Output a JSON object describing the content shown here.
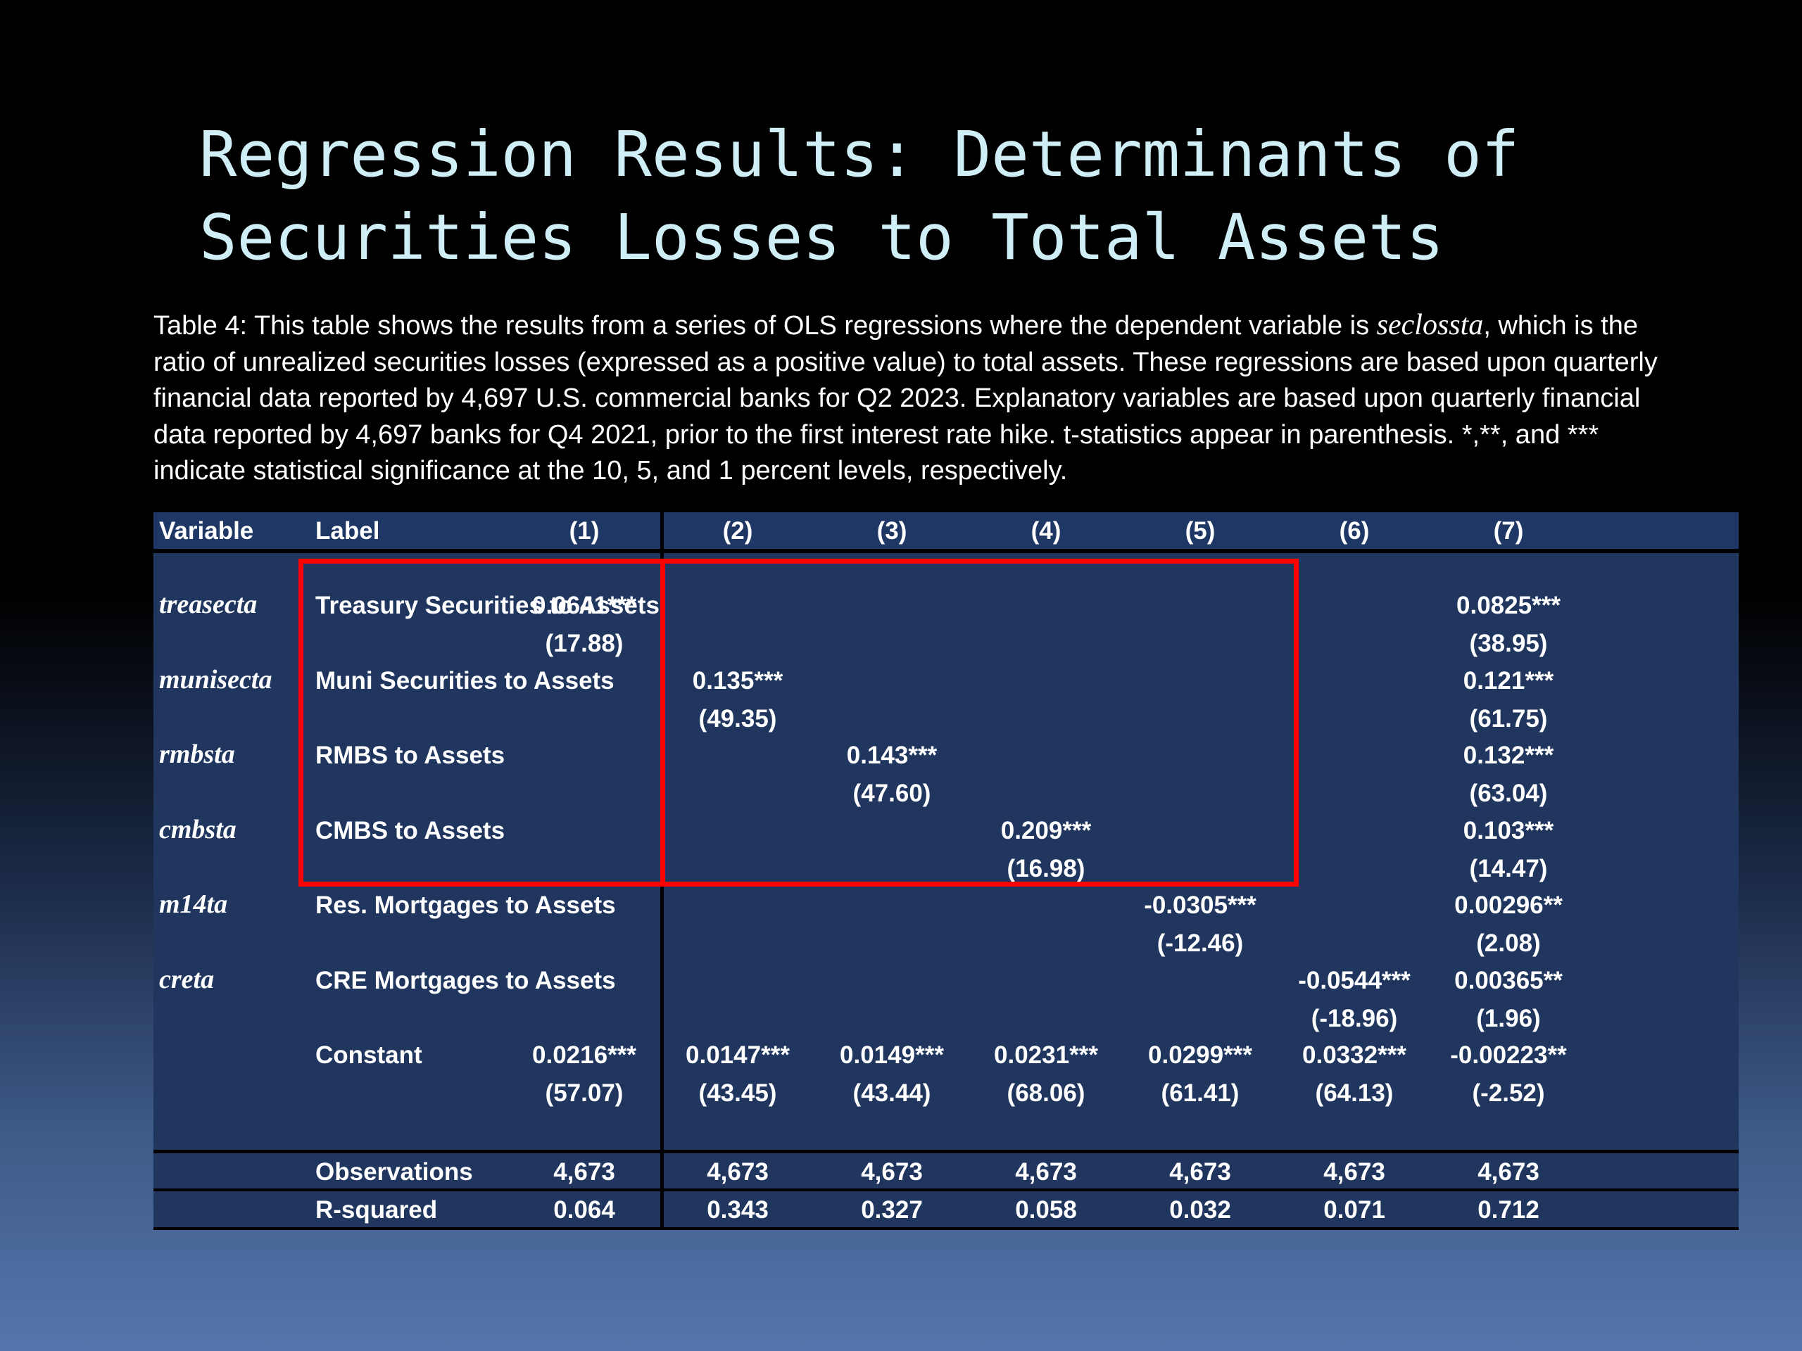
{
  "slide": {
    "title_lines": [
      "Regression Results: Determinants of",
      "Securities Losses to Total Assets"
    ],
    "caption": {
      "line1_pre": "Table 4: This table shows the results from a series of OLS regressions where the dependent variable is ",
      "line1_var": "seclossta",
      "line1_post": ", which is the",
      "line2": "ratio of unrealized securities losses (expressed as a positive value) to total assets. These regressions are based upon quarterly",
      "line3": "financial data reported by 4,697 U.S. commercial banks for Q2 2023. Explanatory variables are based upon quarterly financial",
      "line4": "data reported by 4,697 banks for Q4 2021, prior to the first interest rate hike. t-statistics appear in parenthesis. *,**, and ***",
      "line5": "indicate statistical significance at the 10, 5, and 1 percent levels, respectively."
    }
  },
  "table": {
    "headers": {
      "variable": "Variable",
      "label": "Label",
      "columns": [
        "(1)",
        "(2)",
        "(3)",
        "(4)",
        "(5)",
        "(6)",
        "(7)"
      ]
    },
    "rows": [
      {
        "var": "treasecta",
        "label": "Treasury Securities to Assets",
        "coef": [
          "0.0641***",
          "",
          "",
          "",
          "",
          "",
          "0.0825***"
        ],
        "tstat": [
          "(17.88)",
          "",
          "",
          "",
          "",
          "",
          "(38.95)"
        ]
      },
      {
        "var": "munisecta",
        "label": "Muni Securities to Assets",
        "coef": [
          "",
          "0.135***",
          "",
          "",
          "",
          "",
          "0.121***"
        ],
        "tstat": [
          "",
          "(49.35)",
          "",
          "",
          "",
          "",
          "(61.75)"
        ]
      },
      {
        "var": "rmbsta",
        "label": "RMBS to Assets",
        "coef": [
          "",
          "",
          "0.143***",
          "",
          "",
          "",
          "0.132***"
        ],
        "tstat": [
          "",
          "",
          "(47.60)",
          "",
          "",
          "",
          "(63.04)"
        ]
      },
      {
        "var": "cmbsta",
        "label": "CMBS to Assets",
        "coef": [
          "",
          "",
          "",
          "0.209***",
          "",
          "",
          "0.103***"
        ],
        "tstat": [
          "",
          "",
          "",
          "(16.98)",
          "",
          "",
          "(14.47)"
        ]
      },
      {
        "var": "m14ta",
        "label": "Res. Mortgages to Assets",
        "coef": [
          "",
          "",
          "",
          "",
          "-0.0305***",
          "",
          "0.00296**"
        ],
        "tstat": [
          "",
          "",
          "",
          "",
          "(-12.46)",
          "",
          "(2.08)"
        ]
      },
      {
        "var": "creta",
        "label": "CRE Mortgages to Assets",
        "coef": [
          "",
          "",
          "",
          "",
          "",
          "-0.0544***",
          "0.00365**"
        ],
        "tstat": [
          "",
          "",
          "",
          "",
          "",
          "(-18.96)",
          "(1.96)"
        ]
      },
      {
        "var": "",
        "label": "Constant",
        "coef": [
          "0.0216***",
          "0.0147***",
          "0.0149***",
          "0.0231***",
          "0.0299***",
          "0.0332***",
          "-0.00223**"
        ],
        "tstat": [
          "(57.07)",
          "(43.45)",
          "(43.44)",
          "(68.06)",
          "(61.41)",
          "(64.13)",
          "(-2.52)"
        ]
      }
    ],
    "observations": {
      "label": "Observations",
      "values": [
        "4,673",
        "4,673",
        "4,673",
        "4,673",
        "4,673",
        "4,673",
        "4,673"
      ]
    },
    "rsquared": {
      "label": "R-squared",
      "values": [
        "0.064",
        "0.343",
        "0.327",
        "0.058",
        "0.032",
        "0.071",
        "0.712"
      ]
    }
  },
  "colors": {
    "highlight": "#ff0000",
    "table_bg": "#20365f",
    "title": "#cfeef6"
  }
}
